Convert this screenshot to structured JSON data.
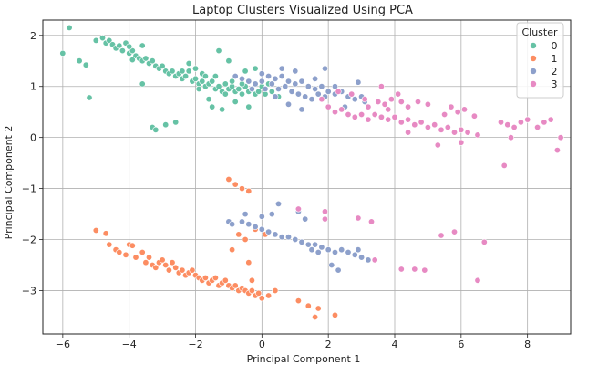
{
  "chart_data": {
    "type": "scatter",
    "title": "Laptop Clusters Visualized Using PCA",
    "xlabel": "Principal Component 1",
    "ylabel": "Principal Component 2",
    "xlim": [
      -6.6,
      9.3
    ],
    "ylim": [
      -3.85,
      2.3
    ],
    "xticks": [
      -6,
      -4,
      -2,
      0,
      2,
      4,
      6,
      8
    ],
    "yticks": [
      -3,
      -2,
      -1,
      0,
      1,
      2
    ],
    "grid": true,
    "legend": {
      "title": "Cluster",
      "placement": "top-right"
    },
    "series": [
      {
        "name": "0",
        "color": "#66c2a5",
        "points": [
          [
            -6.0,
            1.65
          ],
          [
            -5.8,
            2.15
          ],
          [
            -5.5,
            1.5
          ],
          [
            -5.3,
            1.42
          ],
          [
            -5.2,
            0.78
          ],
          [
            -5.0,
            1.9
          ],
          [
            -4.8,
            1.95
          ],
          [
            -4.7,
            1.85
          ],
          [
            -4.6,
            1.9
          ],
          [
            -4.5,
            1.82
          ],
          [
            -4.4,
            1.75
          ],
          [
            -4.3,
            1.8
          ],
          [
            -4.2,
            1.7
          ],
          [
            -4.1,
            1.85
          ],
          [
            -4.0,
            1.65
          ],
          [
            -3.9,
            1.7
          ],
          [
            -3.8,
            1.6
          ],
          [
            -3.7,
            1.55
          ],
          [
            -3.6,
            1.5
          ],
          [
            -3.5,
            1.55
          ],
          [
            -3.4,
            1.45
          ],
          [
            -3.3,
            1.5
          ],
          [
            -3.2,
            1.4
          ],
          [
            -3.1,
            1.35
          ],
          [
            -3.0,
            1.4
          ],
          [
            -2.9,
            1.3
          ],
          [
            -2.8,
            1.25
          ],
          [
            -2.7,
            1.3
          ],
          [
            -2.6,
            1.2
          ],
          [
            -2.5,
            1.25
          ],
          [
            -2.4,
            1.15
          ],
          [
            -2.3,
            1.2
          ],
          [
            -2.2,
            1.3
          ],
          [
            -2.1,
            1.1
          ],
          [
            -2.0,
            1.15
          ],
          [
            -1.9,
            1.05
          ],
          [
            -1.8,
            1.1
          ],
          [
            -1.7,
            1.0
          ],
          [
            -1.6,
            1.05
          ],
          [
            -1.5,
            1.1
          ],
          [
            -1.4,
            0.95
          ],
          [
            -1.3,
            1.0
          ],
          [
            -1.2,
            0.9
          ],
          [
            -1.1,
            1.05
          ],
          [
            -1.0,
            0.95
          ],
          [
            -0.9,
            1.0
          ],
          [
            -0.8,
            0.9
          ],
          [
            -0.7,
            0.95
          ],
          [
            -0.6,
            0.85
          ],
          [
            -0.5,
            1.0
          ],
          [
            -0.4,
            0.9
          ],
          [
            -0.3,
            0.95
          ],
          [
            -0.2,
            0.85
          ],
          [
            -0.1,
            0.9
          ],
          [
            0.0,
            1.0
          ],
          [
            0.1,
            0.85
          ],
          [
            0.3,
            0.9
          ],
          [
            0.5,
            0.8
          ],
          [
            -3.9,
            1.52
          ],
          [
            -3.6,
            1.05
          ],
          [
            -3.3,
            0.2
          ],
          [
            -3.2,
            0.15
          ],
          [
            -2.9,
            0.25
          ],
          [
            -2.6,
            0.3
          ],
          [
            -1.3,
            1.7
          ],
          [
            -1.0,
            1.5
          ],
          [
            -0.5,
            1.3
          ],
          [
            -0.2,
            1.35
          ],
          [
            -1.5,
            0.6
          ],
          [
            -1.2,
            0.55
          ],
          [
            -2.2,
            1.45
          ],
          [
            -1.8,
            1.25
          ],
          [
            -1.6,
            0.75
          ],
          [
            -0.8,
            0.7
          ],
          [
            -0.4,
            0.6
          ],
          [
            -2.4,
            1.3
          ],
          [
            -1.9,
            0.95
          ],
          [
            -1.4,
            1.2
          ],
          [
            -0.9,
            1.1
          ],
          [
            0.2,
            1.05
          ],
          [
            -4.0,
            1.78
          ],
          [
            -3.6,
            1.8
          ],
          [
            -2.0,
            1.35
          ],
          [
            -1.7,
            1.2
          ],
          [
            -1.1,
            0.85
          ],
          [
            -0.6,
            1.05
          ]
        ]
      },
      {
        "name": "1",
        "color": "#fc8d62",
        "points": [
          [
            -5.0,
            -1.82
          ],
          [
            -4.7,
            -1.88
          ],
          [
            -4.6,
            -2.1
          ],
          [
            -4.4,
            -2.2
          ],
          [
            -4.3,
            -2.25
          ],
          [
            -4.1,
            -2.3
          ],
          [
            -4.0,
            -2.1
          ],
          [
            -3.9,
            -2.12
          ],
          [
            -3.8,
            -2.35
          ],
          [
            -3.6,
            -2.25
          ],
          [
            -3.5,
            -2.45
          ],
          [
            -3.4,
            -2.35
          ],
          [
            -3.3,
            -2.5
          ],
          [
            -3.2,
            -2.55
          ],
          [
            -3.1,
            -2.45
          ],
          [
            -3.0,
            -2.4
          ],
          [
            -2.9,
            -2.5
          ],
          [
            -2.8,
            -2.6
          ],
          [
            -2.7,
            -2.45
          ],
          [
            -2.6,
            -2.55
          ],
          [
            -2.5,
            -2.65
          ],
          [
            -2.4,
            -2.6
          ],
          [
            -2.3,
            -2.7
          ],
          [
            -2.2,
            -2.65
          ],
          [
            -2.1,
            -2.6
          ],
          [
            -2.0,
            -2.7
          ],
          [
            -1.9,
            -2.75
          ],
          [
            -1.8,
            -2.8
          ],
          [
            -1.7,
            -2.75
          ],
          [
            -1.6,
            -2.85
          ],
          [
            -1.5,
            -2.8
          ],
          [
            -1.4,
            -2.75
          ],
          [
            -1.3,
            -2.9
          ],
          [
            -1.2,
            -2.85
          ],
          [
            -1.1,
            -2.8
          ],
          [
            -1.0,
            -2.9
          ],
          [
            -0.9,
            -2.95
          ],
          [
            -0.8,
            -2.9
          ],
          [
            -0.7,
            -3.0
          ],
          [
            -0.6,
            -2.95
          ],
          [
            -0.5,
            -3.0
          ],
          [
            -0.4,
            -3.05
          ],
          [
            -0.3,
            -3.0
          ],
          [
            -0.2,
            -3.1
          ],
          [
            -0.1,
            -3.05
          ],
          [
            0.0,
            -3.15
          ],
          [
            0.2,
            -3.1
          ],
          [
            0.4,
            -3.0
          ],
          [
            -1.0,
            -0.82
          ],
          [
            -0.8,
            -0.92
          ],
          [
            -0.6,
            -1.0
          ],
          [
            -0.4,
            -1.05
          ],
          [
            -0.7,
            -1.9
          ],
          [
            -0.5,
            -2.0
          ],
          [
            -0.4,
            -2.45
          ],
          [
            -0.2,
            -1.8
          ],
          [
            -0.3,
            -2.8
          ],
          [
            1.1,
            -3.2
          ],
          [
            1.4,
            -3.3
          ],
          [
            1.6,
            -3.52
          ],
          [
            1.7,
            -3.35
          ],
          [
            2.2,
            -3.48
          ],
          [
            0.1,
            -1.9
          ],
          [
            -0.9,
            -2.2
          ]
        ]
      },
      {
        "name": "2",
        "color": "#8da0cb",
        "points": [
          [
            -1.0,
            -1.65
          ],
          [
            -0.9,
            -1.7
          ],
          [
            -0.6,
            -1.65
          ],
          [
            -0.4,
            -1.7
          ],
          [
            -0.2,
            -1.75
          ],
          [
            0.0,
            -1.8
          ],
          [
            0.2,
            -1.85
          ],
          [
            0.4,
            -1.9
          ],
          [
            0.6,
            -1.95
          ],
          [
            0.8,
            -1.95
          ],
          [
            1.0,
            -2.0
          ],
          [
            1.2,
            -2.05
          ],
          [
            1.4,
            -2.1
          ],
          [
            1.6,
            -2.1
          ],
          [
            1.8,
            -2.15
          ],
          [
            2.0,
            -2.2
          ],
          [
            2.2,
            -2.25
          ],
          [
            2.4,
            -2.2
          ],
          [
            2.6,
            -2.25
          ],
          [
            2.8,
            -2.3
          ],
          [
            3.0,
            -2.35
          ],
          [
            -0.5,
            -1.5
          ],
          [
            0.0,
            -1.55
          ],
          [
            0.3,
            -1.5
          ],
          [
            0.5,
            -1.3
          ],
          [
            1.1,
            -1.45
          ],
          [
            1.3,
            -1.6
          ],
          [
            1.5,
            -2.2
          ],
          [
            1.7,
            -2.25
          ],
          [
            2.1,
            -2.5
          ],
          [
            2.3,
            -2.6
          ],
          [
            2.9,
            -2.2
          ],
          [
            3.2,
            -2.4
          ],
          [
            0.0,
            1.25
          ],
          [
            0.2,
            1.2
          ],
          [
            0.4,
            1.15
          ],
          [
            0.6,
            1.2
          ],
          [
            0.8,
            1.1
          ],
          [
            1.0,
            1.05
          ],
          [
            1.2,
            1.1
          ],
          [
            1.4,
            1.0
          ],
          [
            1.6,
            0.95
          ],
          [
            1.8,
            1.0
          ],
          [
            2.0,
            0.9
          ],
          [
            2.2,
            0.85
          ],
          [
            2.4,
            0.9
          ],
          [
            2.6,
            0.8
          ],
          [
            2.8,
            0.75
          ],
          [
            3.0,
            0.8
          ],
          [
            -0.8,
            1.2
          ],
          [
            -0.6,
            1.15
          ],
          [
            -0.4,
            1.1
          ],
          [
            -0.2,
            1.05
          ],
          [
            0.1,
            0.95
          ],
          [
            0.3,
            1.05
          ],
          [
            0.5,
            0.95
          ],
          [
            0.7,
            1.0
          ],
          [
            0.9,
            0.9
          ],
          [
            1.1,
            0.85
          ],
          [
            1.3,
            0.8
          ],
          [
            1.5,
            0.75
          ],
          [
            1.7,
            0.85
          ],
          [
            1.9,
            0.8
          ],
          [
            0.6,
            1.35
          ],
          [
            1.0,
            1.3
          ],
          [
            1.9,
            1.35
          ],
          [
            2.9,
            1.08
          ],
          [
            1.2,
            0.55
          ],
          [
            0.8,
            0.65
          ],
          [
            2.5,
            0.6
          ],
          [
            3.1,
            0.7
          ],
          [
            -0.3,
            0.95
          ],
          [
            0.0,
            1.1
          ],
          [
            0.4,
            0.8
          ],
          [
            1.6,
            1.15
          ],
          [
            2.2,
            1.0
          ]
        ]
      },
      {
        "name": "3",
        "color": "#e78ac3",
        "points": [
          [
            1.8,
            0.75
          ],
          [
            2.0,
            0.6
          ],
          [
            2.2,
            0.5
          ],
          [
            2.4,
            0.55
          ],
          [
            2.6,
            0.45
          ],
          [
            2.8,
            0.4
          ],
          [
            3.0,
            0.45
          ],
          [
            3.2,
            0.35
          ],
          [
            3.4,
            0.45
          ],
          [
            3.6,
            0.4
          ],
          [
            3.8,
            0.35
          ],
          [
            4.0,
            0.4
          ],
          [
            4.2,
            0.3
          ],
          [
            4.4,
            0.35
          ],
          [
            4.6,
            0.25
          ],
          [
            4.8,
            0.3
          ],
          [
            5.0,
            0.2
          ],
          [
            5.2,
            0.25
          ],
          [
            5.4,
            0.15
          ],
          [
            5.6,
            0.2
          ],
          [
            5.8,
            0.1
          ],
          [
            6.0,
            0.15
          ],
          [
            6.2,
            0.1
          ],
          [
            6.5,
            0.05
          ],
          [
            7.2,
            0.3
          ],
          [
            7.4,
            0.25
          ],
          [
            7.6,
            0.2
          ],
          [
            7.8,
            0.3
          ],
          [
            8.0,
            0.35
          ],
          [
            8.3,
            0.2
          ],
          [
            8.5,
            0.3
          ],
          [
            8.7,
            0.35
          ],
          [
            9.0,
            0.0
          ],
          [
            8.9,
            -0.25
          ],
          [
            7.5,
            0.0
          ],
          [
            7.3,
            -0.55
          ],
          [
            5.5,
            0.45
          ],
          [
            5.7,
            0.6
          ],
          [
            5.9,
            0.5
          ],
          [
            6.1,
            0.55
          ],
          [
            4.2,
            0.7
          ],
          [
            4.4,
            0.6
          ],
          [
            4.7,
            0.7
          ],
          [
            5.0,
            0.65
          ],
          [
            3.5,
            0.7
          ],
          [
            3.7,
            0.65
          ],
          [
            3.9,
            0.75
          ],
          [
            3.1,
            0.75
          ],
          [
            2.7,
            0.85
          ],
          [
            3.6,
            1.0
          ],
          [
            4.1,
            0.85
          ],
          [
            2.3,
            0.9
          ],
          [
            1.1,
            -1.4
          ],
          [
            1.9,
            -1.45
          ],
          [
            1.9,
            -1.6
          ],
          [
            2.9,
            -1.58
          ],
          [
            3.3,
            -1.65
          ],
          [
            3.4,
            -2.4
          ],
          [
            4.2,
            -2.58
          ],
          [
            4.6,
            -2.58
          ],
          [
            4.9,
            -2.6
          ],
          [
            5.4,
            -1.92
          ],
          [
            5.8,
            -1.85
          ],
          [
            6.7,
            -2.05
          ],
          [
            6.5,
            -2.8
          ],
          [
            5.3,
            -0.15
          ],
          [
            6.0,
            -0.1
          ],
          [
            6.4,
            0.42
          ],
          [
            4.4,
            0.1
          ],
          [
            3.8,
            0.55
          ],
          [
            3.2,
            0.6
          ]
        ]
      }
    ]
  }
}
